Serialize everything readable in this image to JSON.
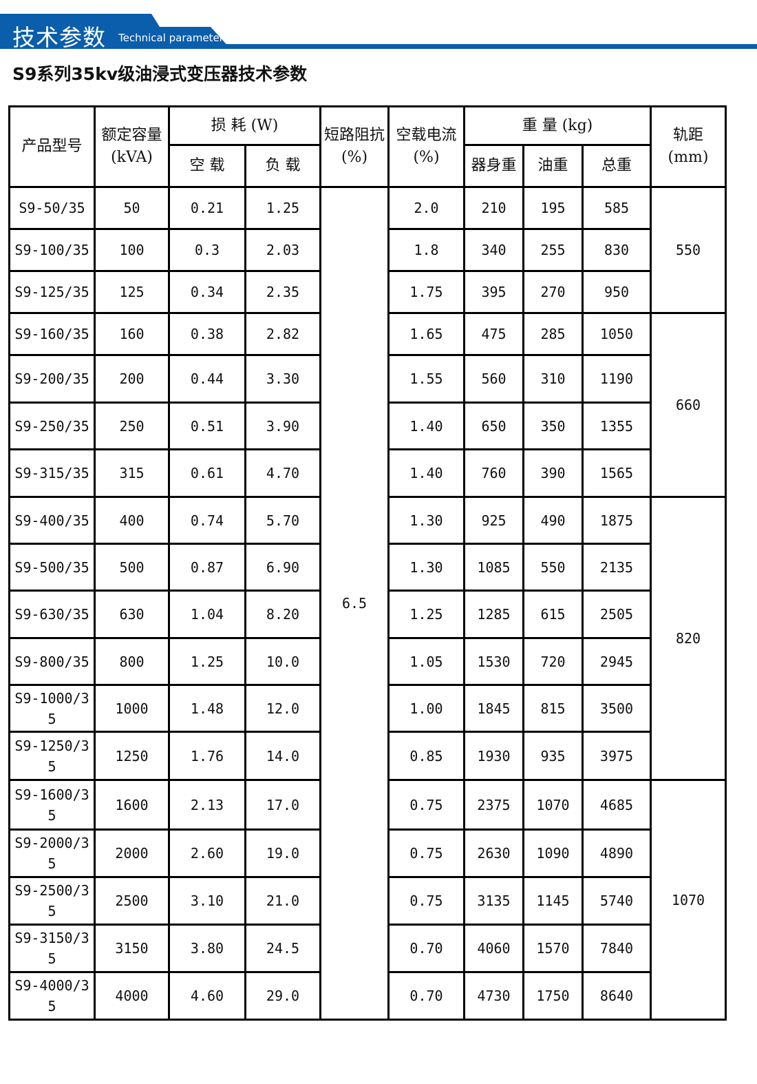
{
  "header": {
    "title_cn": "技术参数",
    "title_en": "Technical parameter",
    "accent": "#0a5eab"
  },
  "subtitle": "S9系列35kv级油浸式变压器技术参数",
  "table": {
    "headers": {
      "model": "产品型号",
      "capacity": "额定容量",
      "capacity_unit": "(kVA)",
      "loss": "损 耗 (W)",
      "loss_noload": "空 载",
      "loss_load": "负 载",
      "impedance": "短路阻抗",
      "impedance_unit": "(%)",
      "current": "空载电流",
      "current_unit": "(%)",
      "weight": "重 量 (kg)",
      "weight_body": "器身重",
      "weight_oil": "油重",
      "weight_total": "总重",
      "gauge": "轨距",
      "gauge_unit": "(mm)"
    },
    "impedance_value": "6.5",
    "gauge_groups": [
      {
        "value": "550",
        "rows": 3
      },
      {
        "value": "660",
        "rows": 4
      },
      {
        "value": "820",
        "rows": 6
      },
      {
        "value": "1070",
        "rows": 5
      }
    ],
    "rows": [
      {
        "model": "S9-50/35",
        "capacity": "50",
        "noload": "0.21",
        "load": "1.25",
        "current": "2.0",
        "body": "210",
        "oil": "195",
        "total": "585"
      },
      {
        "model": "S9-100/35",
        "capacity": "100",
        "noload": "0.3",
        "load": "2.03",
        "current": "1.8",
        "body": "340",
        "oil": "255",
        "total": "830"
      },
      {
        "model": "S9-125/35",
        "capacity": "125",
        "noload": "0.34",
        "load": "2.35",
        "current": "1.75",
        "body": "395",
        "oil": "270",
        "total": "950"
      },
      {
        "model": "S9-160/35",
        "capacity": "160",
        "noload": "0.38",
        "load": "2.82",
        "current": "1.65",
        "body": "475",
        "oil": "285",
        "total": "1050"
      },
      {
        "model": "S9-200/35",
        "capacity": "200",
        "noload": "0.44",
        "load": "3.30",
        "current": "1.55",
        "body": "560",
        "oil": "310",
        "total": "1190"
      },
      {
        "model": "S9-250/35",
        "capacity": "250",
        "noload": "0.51",
        "load": "3.90",
        "current": "1.40",
        "body": "650",
        "oil": "350",
        "total": "1355"
      },
      {
        "model": "S9-315/35",
        "capacity": "315",
        "noload": "0.61",
        "load": "4.70",
        "current": "1.40",
        "body": "760",
        "oil": "390",
        "total": "1565"
      },
      {
        "model": "S9-400/35",
        "capacity": "400",
        "noload": "0.74",
        "load": "5.70",
        "current": "1.30",
        "body": "925",
        "oil": "490",
        "total": "1875"
      },
      {
        "model": "S9-500/35",
        "capacity": "500",
        "noload": "0.87",
        "load": "6.90",
        "current": "1.30",
        "body": "1085",
        "oil": "550",
        "total": "2135"
      },
      {
        "model": "S9-630/35",
        "capacity": "630",
        "noload": "1.04",
        "load": "8.20",
        "current": "1.25",
        "body": "1285",
        "oil": "615",
        "total": "2505"
      },
      {
        "model": "S9-800/35",
        "capacity": "800",
        "noload": "1.25",
        "load": "10.0",
        "current": "1.05",
        "body": "1530",
        "oil": "720",
        "total": "2945"
      },
      {
        "model": "S9-1000/35",
        "capacity": "1000",
        "noload": "1.48",
        "load": "12.0",
        "current": "1.00",
        "body": "1845",
        "oil": "815",
        "total": "3500"
      },
      {
        "model": "S9-1250/35",
        "capacity": "1250",
        "noload": "1.76",
        "load": "14.0",
        "current": "0.85",
        "body": "1930",
        "oil": "935",
        "total": "3975"
      },
      {
        "model": "S9-1600/35",
        "capacity": "1600",
        "noload": "2.13",
        "load": "17.0",
        "current": "0.75",
        "body": "2375",
        "oil": "1070",
        "total": "4685"
      },
      {
        "model": "S9-2000/35",
        "capacity": "2000",
        "noload": "2.60",
        "load": "19.0",
        "current": "0.75",
        "body": "2630",
        "oil": "1090",
        "total": "4890"
      },
      {
        "model": "S9-2500/35",
        "capacity": "2500",
        "noload": "3.10",
        "load": "21.0",
        "current": "0.75",
        "body": "3135",
        "oil": "1145",
        "total": "5740"
      },
      {
        "model": "S9-3150/35",
        "capacity": "3150",
        "noload": "3.80",
        "load": "24.5",
        "current": "0.70",
        "body": "4060",
        "oil": "1570",
        "total": "7840"
      },
      {
        "model": "S9-4000/35",
        "capacity": "4000",
        "noload": "4.60",
        "load": "29.0",
        "current": "0.70",
        "body": "4730",
        "oil": "1750",
        "total": "8640"
      }
    ]
  }
}
